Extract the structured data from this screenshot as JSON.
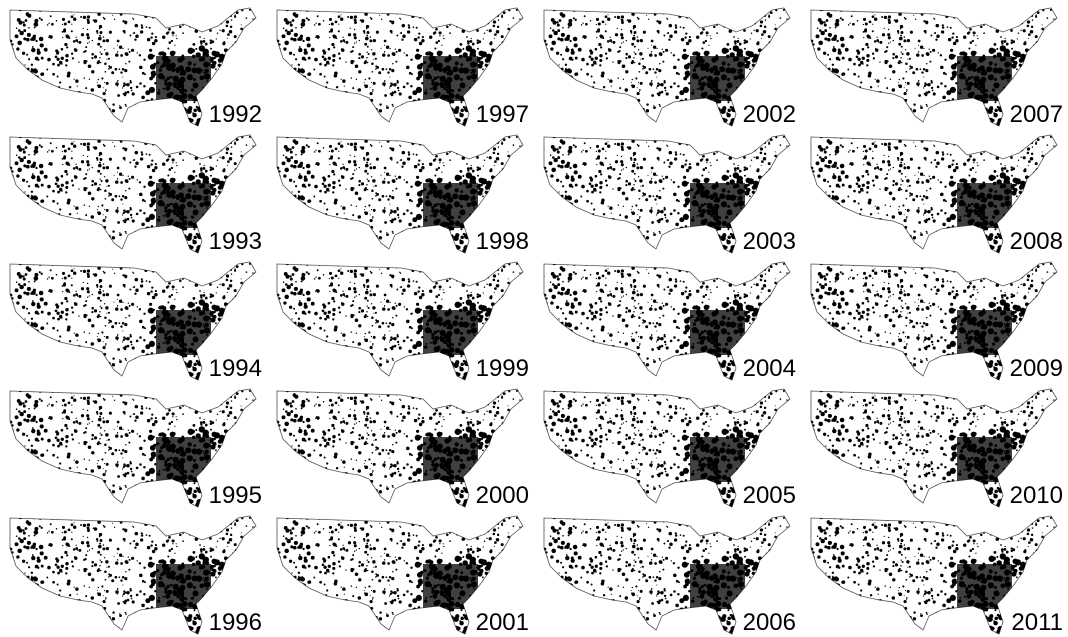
{
  "panels": [
    {
      "year": "1992"
    },
    {
      "year": "1993"
    },
    {
      "year": "1994"
    },
    {
      "year": "1995"
    },
    {
      "year": "1996"
    },
    {
      "year": "1997"
    },
    {
      "year": "1998"
    },
    {
      "year": "1999"
    },
    {
      "year": "2000"
    },
    {
      "year": "2001"
    },
    {
      "year": "2002"
    },
    {
      "year": "2003"
    },
    {
      "year": "2004"
    },
    {
      "year": "2005"
    },
    {
      "year": "2006"
    },
    {
      "year": "2007"
    },
    {
      "year": "2008"
    },
    {
      "year": "2009"
    },
    {
      "year": "2010"
    },
    {
      "year": "2011"
    }
  ]
}
